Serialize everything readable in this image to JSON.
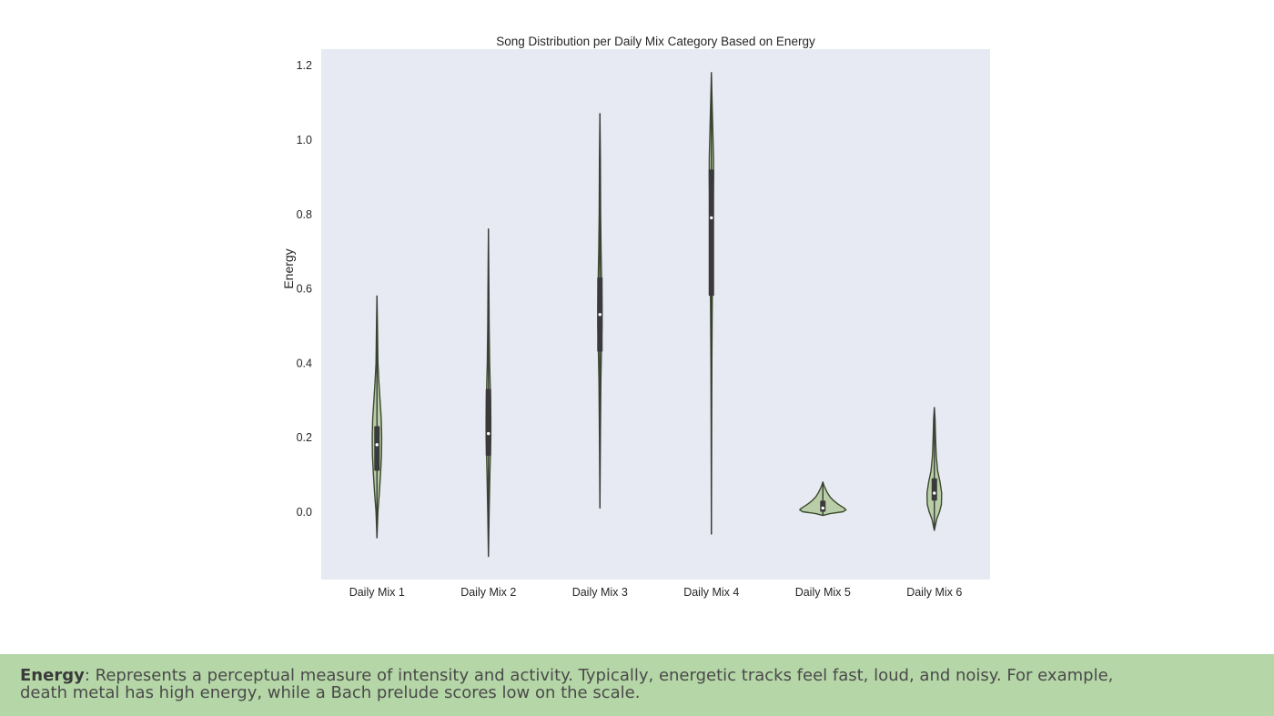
{
  "chart_data": {
    "type": "violin",
    "title": "Song Distribution per Daily Mix Category Based on Energy",
    "xlabel": "",
    "ylabel": "Energy",
    "ylim": [
      -0.18,
      1.22
    ],
    "yticks": [
      "0.0",
      "0.2",
      "0.4",
      "0.6",
      "0.8",
      "1.0",
      "1.2"
    ],
    "grid": false,
    "background": "#e8eaf3",
    "violin_fill": "#b9cea8",
    "violin_edge": "#3b4a2b",
    "categories": [
      "Daily Mix 1",
      "Daily Mix 2",
      "Daily Mix 3",
      "Daily Mix 4",
      "Daily Mix 5",
      "Daily Mix 6"
    ],
    "series": [
      {
        "category": "Daily Mix 1",
        "min": -0.07,
        "max": 0.58,
        "q1": 0.11,
        "median": 0.18,
        "q3": 0.23,
        "profile": [
          [
            -0.07,
            0.0
          ],
          [
            0.0,
            0.004
          ],
          [
            0.05,
            0.01
          ],
          [
            0.1,
            0.015
          ],
          [
            0.15,
            0.019
          ],
          [
            0.2,
            0.02
          ],
          [
            0.25,
            0.018
          ],
          [
            0.3,
            0.013
          ],
          [
            0.35,
            0.008
          ],
          [
            0.4,
            0.004
          ],
          [
            0.45,
            0.003
          ],
          [
            0.5,
            0.002
          ],
          [
            0.58,
            0.0
          ]
        ]
      },
      {
        "category": "Daily Mix 2",
        "min": -0.12,
        "max": 0.76,
        "q1": 0.15,
        "median": 0.21,
        "q3": 0.33,
        "profile": [
          [
            -0.12,
            0.0
          ],
          [
            0.0,
            0.003
          ],
          [
            0.1,
            0.006
          ],
          [
            0.15,
            0.008
          ],
          [
            0.2,
            0.01
          ],
          [
            0.25,
            0.01
          ],
          [
            0.3,
            0.009
          ],
          [
            0.35,
            0.007
          ],
          [
            0.4,
            0.005
          ],
          [
            0.5,
            0.003
          ],
          [
            0.6,
            0.002
          ],
          [
            0.76,
            0.0
          ]
        ]
      },
      {
        "category": "Daily Mix 3",
        "min": 0.01,
        "max": 1.07,
        "q1": 0.43,
        "median": 0.53,
        "q3": 0.63,
        "profile": [
          [
            0.01,
            0.0
          ],
          [
            0.2,
            0.002
          ],
          [
            0.35,
            0.004
          ],
          [
            0.45,
            0.007
          ],
          [
            0.5,
            0.009
          ],
          [
            0.55,
            0.009
          ],
          [
            0.6,
            0.008
          ],
          [
            0.7,
            0.005
          ],
          [
            0.8,
            0.003
          ],
          [
            0.95,
            0.002
          ],
          [
            1.07,
            0.0
          ]
        ]
      },
      {
        "category": "Daily Mix 4",
        "min": -0.06,
        "max": 1.18,
        "q1": 0.58,
        "median": 0.79,
        "q3": 0.92,
        "profile": [
          [
            -0.06,
            0.0
          ],
          [
            0.2,
            0.001
          ],
          [
            0.4,
            0.002
          ],
          [
            0.6,
            0.004
          ],
          [
            0.8,
            0.007
          ],
          [
            0.9,
            0.009
          ],
          [
            0.95,
            0.009
          ],
          [
            1.0,
            0.007
          ],
          [
            1.1,
            0.003
          ],
          [
            1.18,
            0.0
          ]
        ]
      },
      {
        "category": "Daily Mix 5",
        "min": -0.01,
        "max": 0.08,
        "q1": 0.0,
        "median": 0.01,
        "q3": 0.03,
        "profile": [
          [
            -0.01,
            0.0
          ],
          [
            -0.005,
            0.03
          ],
          [
            0.0,
            0.085
          ],
          [
            0.005,
            0.098
          ],
          [
            0.01,
            0.09
          ],
          [
            0.02,
            0.065
          ],
          [
            0.03,
            0.045
          ],
          [
            0.04,
            0.03
          ],
          [
            0.05,
            0.02
          ],
          [
            0.06,
            0.012
          ],
          [
            0.07,
            0.005
          ],
          [
            0.08,
            0.0
          ]
        ]
      },
      {
        "category": "Daily Mix 6",
        "min": -0.05,
        "max": 0.28,
        "q1": 0.03,
        "median": 0.05,
        "q3": 0.09,
        "profile": [
          [
            -0.05,
            0.0
          ],
          [
            -0.02,
            0.01
          ],
          [
            0.0,
            0.022
          ],
          [
            0.02,
            0.03
          ],
          [
            0.05,
            0.031
          ],
          [
            0.08,
            0.024
          ],
          [
            0.11,
            0.014
          ],
          [
            0.15,
            0.008
          ],
          [
            0.2,
            0.005
          ],
          [
            0.25,
            0.003
          ],
          [
            0.28,
            0.0
          ]
        ]
      }
    ]
  },
  "caption": {
    "term": "Energy",
    "text": ": Represents a perceptual measure of intensity and activity. Typically, energetic tracks feel fast, loud, and noisy. For example, death metal has high energy, while a Bach prelude scores low on the scale."
  }
}
